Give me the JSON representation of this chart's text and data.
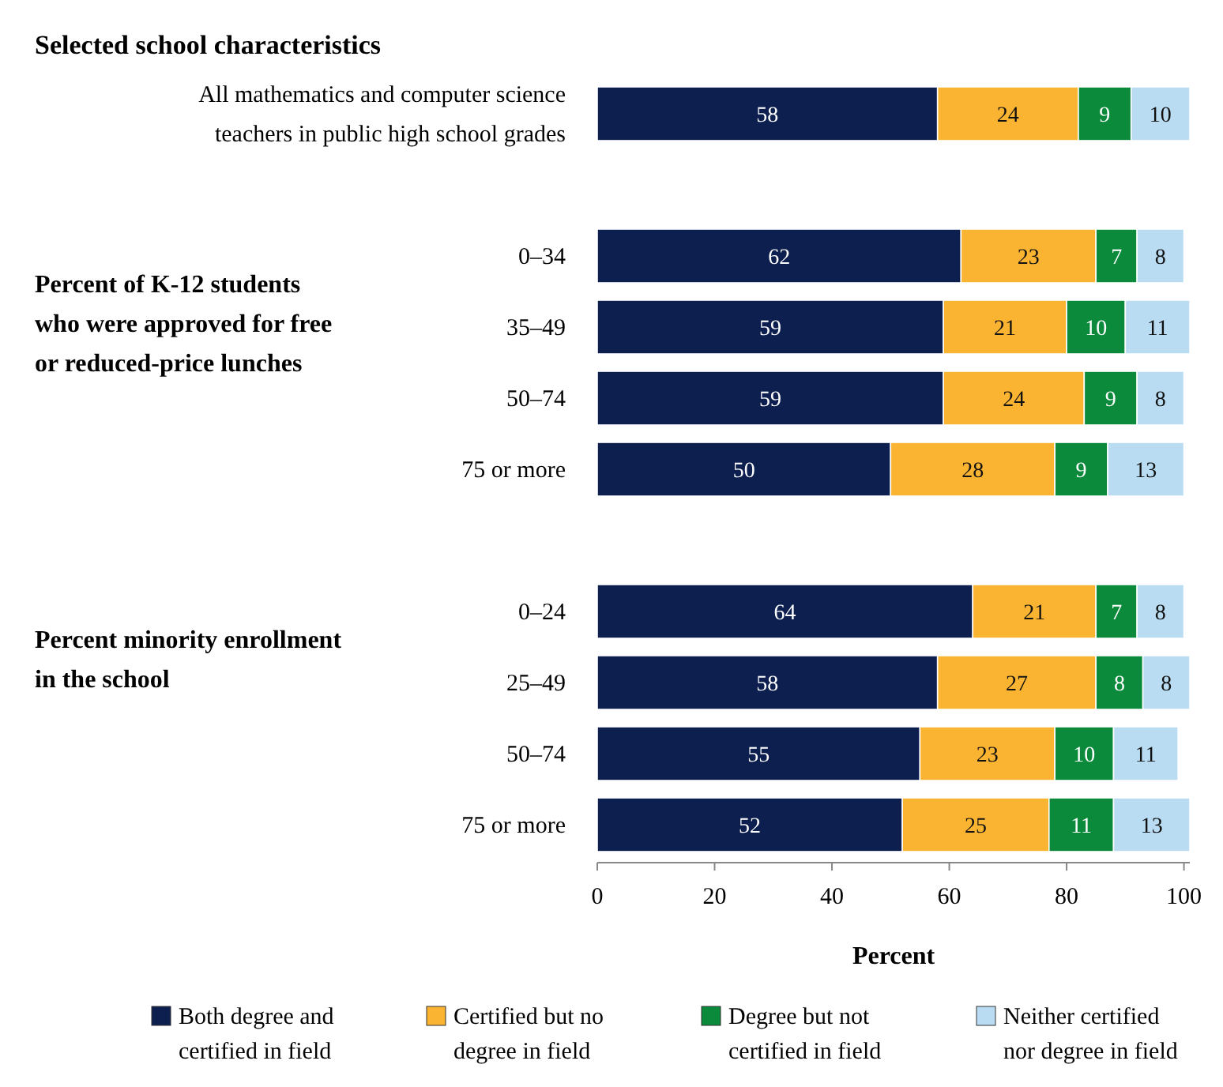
{
  "chart_data": {
    "type": "bar",
    "orientation": "horizontal",
    "stacked": true,
    "title": "Selected school characteristics",
    "categories": [
      "All mathematics and computer science teachers in public high school grades",
      "0–34",
      "35–49",
      "50–74",
      "75 or more",
      "0–24",
      "25–49",
      "50–74",
      "75 or more"
    ],
    "series": [
      {
        "name": "Both degree and certified in field",
        "color": "#0d1f4f",
        "values": [
          58,
          62,
          59,
          59,
          50,
          64,
          58,
          55,
          52
        ]
      },
      {
        "name": "Certified but no degree in field",
        "color": "#fbb432",
        "values": [
          24,
          23,
          21,
          24,
          28,
          21,
          27,
          23,
          25
        ]
      },
      {
        "name": "Degree but not certified in field",
        "color": "#0b8a3c",
        "values": [
          9,
          7,
          10,
          9,
          9,
          7,
          8,
          10,
          11
        ]
      },
      {
        "name": "Neither certified nor degree in field",
        "color": "#b9dcf2",
        "values": [
          10,
          8,
          11,
          8,
          13,
          8,
          8,
          11,
          13
        ]
      }
    ],
    "annotations": [
      "Percent of K-12 students who were approved for free or reduced-price lunches",
      "Percent minority enrollment in the school"
    ],
    "xlabel": "Percent",
    "xlim": [
      0,
      101
    ],
    "xticks": [
      0,
      20,
      40,
      60,
      80,
      100
    ],
    "data_labels": true,
    "legend": "bottom"
  }
}
